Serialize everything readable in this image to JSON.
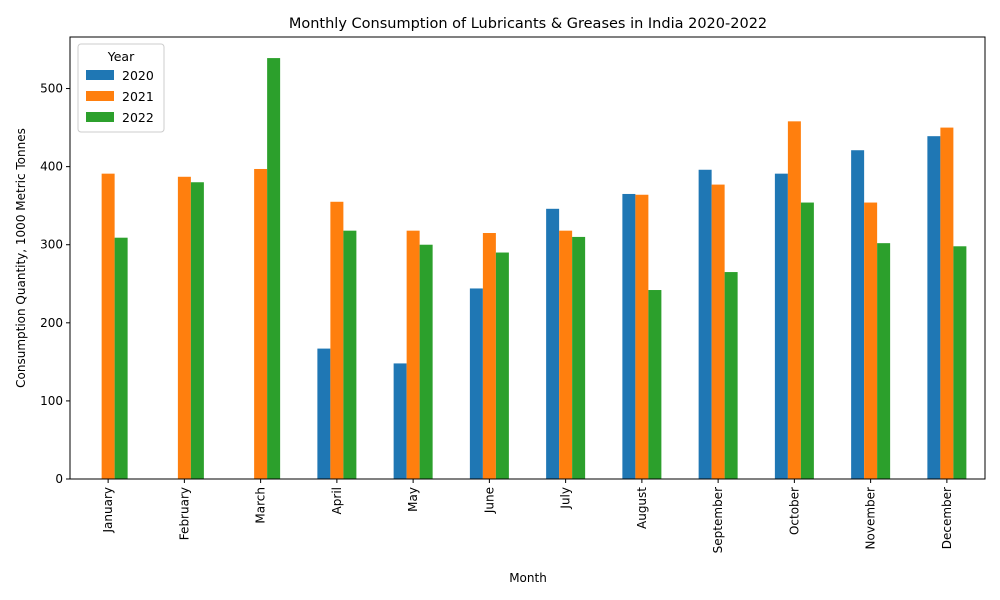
{
  "chart_data": {
    "type": "bar",
    "title": "Monthly Consumption of Lubricants & Greases in India 2020-2022",
    "xlabel": "Month",
    "ylabel": "Consumption Quantity, 1000 Metric Tonnes",
    "categories": [
      "January",
      "February",
      "March",
      "April",
      "May",
      "June",
      "July",
      "August",
      "September",
      "October",
      "November",
      "December"
    ],
    "ylim": [
      0,
      566
    ],
    "yticks": [
      0,
      100,
      200,
      300,
      400,
      500
    ],
    "legend_title": "Year",
    "legend_position": "top-left",
    "grid": false,
    "series": [
      {
        "name": "2020",
        "color": "#1f77b4",
        "values": [
          null,
          null,
          null,
          167,
          148,
          244,
          346,
          365,
          396,
          391,
          421,
          439
        ]
      },
      {
        "name": "2021",
        "color": "#ff7f0e",
        "values": [
          391,
          387,
          397,
          355,
          318,
          315,
          318,
          364,
          377,
          458,
          354,
          450
        ]
      },
      {
        "name": "2022",
        "color": "#2ca02c",
        "values": [
          309,
          380,
          539,
          318,
          300,
          290,
          310,
          242,
          265,
          354,
          302,
          298
        ]
      }
    ]
  }
}
